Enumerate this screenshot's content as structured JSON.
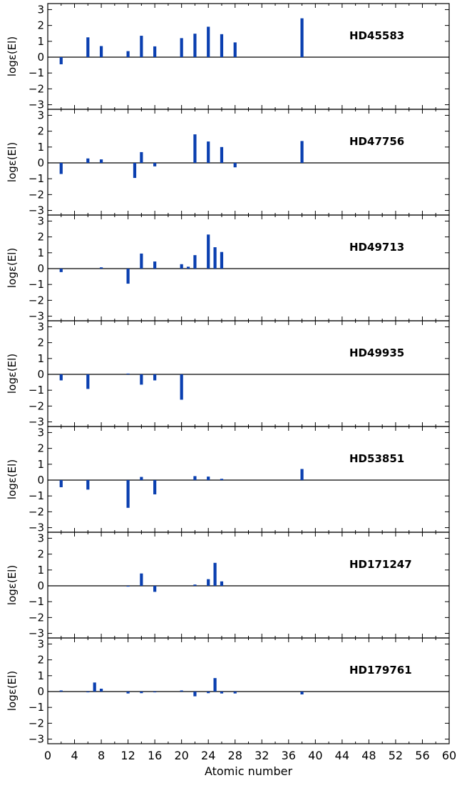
{
  "chart_data": {
    "type": "bar",
    "xlabel": "Atomic number",
    "ylabel": "logε(El)",
    "xlim": [
      0,
      60
    ],
    "ylim": [
      -3.2,
      3.2
    ],
    "grid": false,
    "bar_color": "#0a3fb0",
    "x_ticks": [
      0,
      4,
      8,
      12,
      16,
      20,
      24,
      28,
      32,
      36,
      40,
      44,
      48,
      52,
      56,
      60
    ],
    "y_ticks": [
      -3,
      -2,
      -1,
      0,
      1,
      2,
      3
    ],
    "panels": [
      {
        "name": "HD45583",
        "points": [
          [
            2,
            -0.45
          ],
          [
            6,
            1.25
          ],
          [
            8,
            0.7
          ],
          [
            12,
            0.38
          ],
          [
            14,
            1.35
          ],
          [
            16,
            0.68
          ],
          [
            20,
            1.2
          ],
          [
            22,
            1.48
          ],
          [
            24,
            1.92
          ],
          [
            26,
            1.45
          ],
          [
            28,
            0.93
          ],
          [
            38,
            2.45
          ]
        ]
      },
      {
        "name": "HD47756",
        "points": [
          [
            2,
            -0.7
          ],
          [
            6,
            0.28
          ],
          [
            8,
            0.22
          ],
          [
            13,
            -0.95
          ],
          [
            14,
            0.68
          ],
          [
            16,
            -0.22
          ],
          [
            22,
            1.8
          ],
          [
            24,
            1.35
          ],
          [
            26,
            1.0
          ],
          [
            28,
            -0.28
          ],
          [
            38,
            1.38
          ]
        ]
      },
      {
        "name": "HD49713",
        "points": [
          [
            2,
            -0.22
          ],
          [
            8,
            0.08
          ],
          [
            12,
            -0.95
          ],
          [
            14,
            0.95
          ],
          [
            16,
            0.45
          ],
          [
            20,
            0.28
          ],
          [
            21,
            0.12
          ],
          [
            22,
            0.85
          ],
          [
            24,
            2.15
          ],
          [
            25,
            1.35
          ],
          [
            26,
            1.05
          ]
        ]
      },
      {
        "name": "HD49935",
        "points": [
          [
            2,
            -0.38
          ],
          [
            6,
            -0.92
          ],
          [
            12,
            0.05
          ],
          [
            14,
            -0.65
          ],
          [
            16,
            -0.38
          ],
          [
            20,
            -1.6
          ]
        ]
      },
      {
        "name": "HD53851",
        "points": [
          [
            2,
            -0.45
          ],
          [
            6,
            -0.6
          ],
          [
            12,
            -1.75
          ],
          [
            14,
            0.2
          ],
          [
            16,
            -0.9
          ],
          [
            22,
            0.25
          ],
          [
            24,
            0.22
          ],
          [
            26,
            0.08
          ],
          [
            38,
            0.7
          ]
        ]
      },
      {
        "name": "HD171247",
        "points": [
          [
            12,
            -0.05
          ],
          [
            14,
            0.78
          ],
          [
            16,
            -0.38
          ],
          [
            22,
            0.08
          ],
          [
            24,
            0.42
          ],
          [
            25,
            1.45
          ],
          [
            26,
            0.28
          ]
        ]
      },
      {
        "name": "HD179761",
        "points": [
          [
            2,
            0.07
          ],
          [
            6,
            -0.05
          ],
          [
            7,
            0.57
          ],
          [
            8,
            0.18
          ],
          [
            12,
            -0.12
          ],
          [
            14,
            -0.1
          ],
          [
            16,
            -0.05
          ],
          [
            20,
            0.07
          ],
          [
            22,
            -0.3
          ],
          [
            24,
            -0.1
          ],
          [
            25,
            0.85
          ],
          [
            26,
            -0.12
          ],
          [
            28,
            -0.12
          ],
          [
            38,
            -0.18
          ]
        ]
      }
    ]
  }
}
